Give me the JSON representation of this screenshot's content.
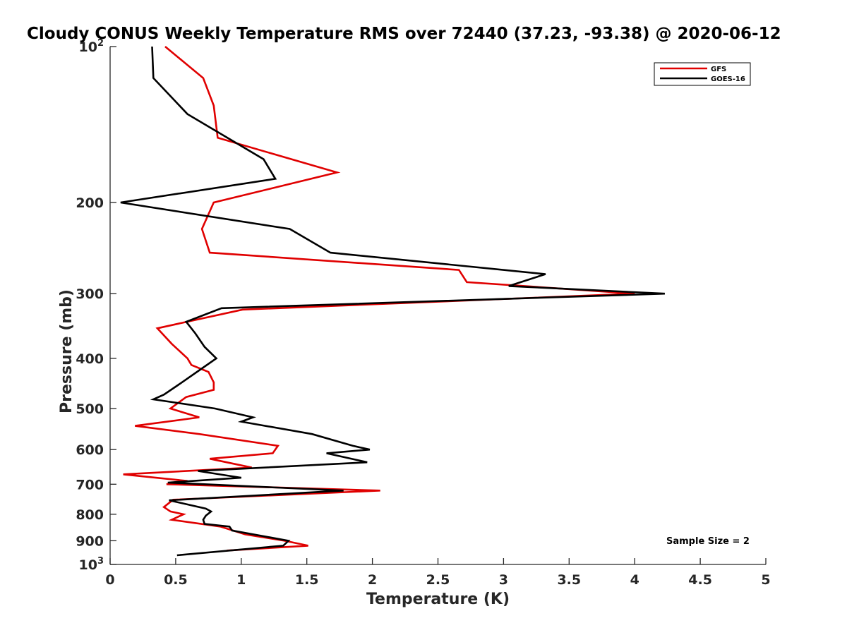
{
  "chart_data": {
    "type": "line",
    "title": "Cloudy CONUS Weekly Temperature RMS over 72440 (37.23, -93.38) @ 2020-06-12",
    "xlabel": "Temperature (K)",
    "ylabel": "Pressure (mb)",
    "xlim": [
      0,
      5
    ],
    "ylim": [
      100,
      1000
    ],
    "y_scale": "log",
    "y_reversed": true,
    "grid": false,
    "legend_position": "top-right",
    "x_ticks": [
      "0",
      "0.5",
      "1",
      "1.5",
      "2",
      "2.5",
      "3",
      "3.5",
      "4",
      "4.5",
      "5"
    ],
    "y_ticks": [
      {
        "value": 100,
        "base": "10",
        "exp": "2"
      },
      {
        "value": 200,
        "label": "200"
      },
      {
        "value": 300,
        "label": "300"
      },
      {
        "value": 400,
        "label": "400"
      },
      {
        "value": 500,
        "label": "500"
      },
      {
        "value": 600,
        "label": "600"
      },
      {
        "value": 700,
        "label": "700"
      },
      {
        "value": 800,
        "label": "800"
      },
      {
        "value": 900,
        "label": "900"
      },
      {
        "value": 1000,
        "base": "10",
        "exp": "3"
      }
    ],
    "series": [
      {
        "name": "GFS",
        "color": "#e00000",
        "points": [
          [
            0.42,
            100
          ],
          [
            0.71,
            115
          ],
          [
            0.79,
            130
          ],
          [
            0.82,
            150
          ],
          [
            1.73,
            175
          ],
          [
            0.79,
            200
          ],
          [
            0.7,
            225
          ],
          [
            0.76,
            250
          ],
          [
            2.66,
            270
          ],
          [
            2.72,
            285
          ],
          [
            4.0,
            300
          ],
          [
            1.01,
            322
          ],
          [
            0.36,
            350
          ],
          [
            0.47,
            375
          ],
          [
            0.59,
            400
          ],
          [
            0.62,
            412
          ],
          [
            0.75,
            425
          ],
          [
            0.79,
            445
          ],
          [
            0.79,
            460
          ],
          [
            0.58,
            475
          ],
          [
            0.46,
            500
          ],
          [
            0.68,
            520
          ],
          [
            0.19,
            540
          ],
          [
            0.68,
            560
          ],
          [
            1.28,
            590
          ],
          [
            1.24,
            610
          ],
          [
            0.76,
            625
          ],
          [
            1.08,
            650
          ],
          [
            0.1,
            670
          ],
          [
            0.59,
            690
          ],
          [
            0.43,
            700
          ],
          [
            2.06,
            720
          ],
          [
            0.48,
            750
          ],
          [
            0.41,
            775
          ],
          [
            0.46,
            790
          ],
          [
            0.56,
            800
          ],
          [
            0.47,
            820
          ],
          [
            0.84,
            845
          ],
          [
            1.03,
            875
          ],
          [
            1.33,
            900
          ],
          [
            1.51,
            920
          ],
          [
            0.89,
            940
          ]
        ]
      },
      {
        "name": "GOES-16",
        "color": "#000000",
        "points": [
          [
            0.32,
            100
          ],
          [
            0.33,
            115
          ],
          [
            0.59,
            135
          ],
          [
            1.17,
            165
          ],
          [
            1.26,
            180
          ],
          [
            0.08,
            200
          ],
          [
            1.37,
            225
          ],
          [
            1.68,
            250
          ],
          [
            3.32,
            275
          ],
          [
            3.04,
            290
          ],
          [
            4.23,
            300
          ],
          [
            0.85,
            320
          ],
          [
            0.58,
            340
          ],
          [
            0.65,
            358
          ],
          [
            0.72,
            380
          ],
          [
            0.81,
            400
          ],
          [
            0.69,
            420
          ],
          [
            0.52,
            450
          ],
          [
            0.41,
            470
          ],
          [
            0.33,
            480
          ],
          [
            0.8,
            500
          ],
          [
            1.09,
            520
          ],
          [
            1.0,
            530
          ],
          [
            1.54,
            560
          ],
          [
            1.85,
            590
          ],
          [
            1.98,
            600
          ],
          [
            1.65,
            610
          ],
          [
            1.96,
            635
          ],
          [
            0.67,
            660
          ],
          [
            1.0,
            680
          ],
          [
            0.44,
            695
          ],
          [
            1.78,
            720
          ],
          [
            0.45,
            752
          ],
          [
            0.73,
            780
          ],
          [
            0.77,
            790
          ],
          [
            0.73,
            805
          ],
          [
            0.71,
            820
          ],
          [
            0.72,
            835
          ],
          [
            0.91,
            845
          ],
          [
            0.93,
            860
          ],
          [
            1.36,
            900
          ],
          [
            1.32,
            920
          ],
          [
            0.51,
            960
          ]
        ]
      }
    ],
    "annotation": "Sample Size = 2"
  }
}
